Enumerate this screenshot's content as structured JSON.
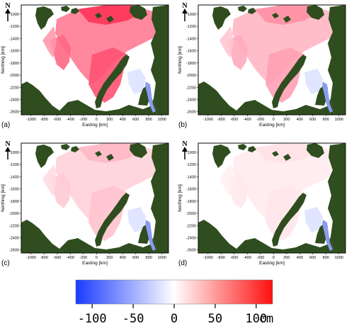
{
  "panels": [
    {
      "id": "a",
      "label": "(a)",
      "intensity": 1.0
    },
    {
      "id": "b",
      "label": "(b)",
      "intensity": 0.55
    },
    {
      "id": "c",
      "label": "(c)",
      "intensity": 0.35
    },
    {
      "id": "d",
      "label": "(d)",
      "intensity": 0.15
    }
  ],
  "axes": {
    "xlabel": "Easting [km]",
    "ylabel": "Northing [km]",
    "xticks": [
      "-1000",
      "-800",
      "-600",
      "-400",
      "-200",
      "0",
      "200",
      "400",
      "600",
      "800",
      "1000"
    ],
    "yticks": [
      "-1000",
      "-1200",
      "-1400",
      "-1600",
      "-1800",
      "-2000",
      "-2200",
      "-2400",
      "-2600"
    ],
    "xlim": [
      -1150,
      1100
    ],
    "ylim": [
      -2650,
      -850
    ]
  },
  "north_label": "N",
  "colorbar": {
    "ticks": [
      "-100",
      "-50",
      "0",
      "50",
      "100"
    ],
    "unit": "cm",
    "range": [
      -120,
      120
    ],
    "neg_color": "#1a3cff",
    "zero_color": "#ffffff",
    "pos_color": "#ff1010"
  },
  "colors": {
    "land": "#2f4d1e"
  }
}
